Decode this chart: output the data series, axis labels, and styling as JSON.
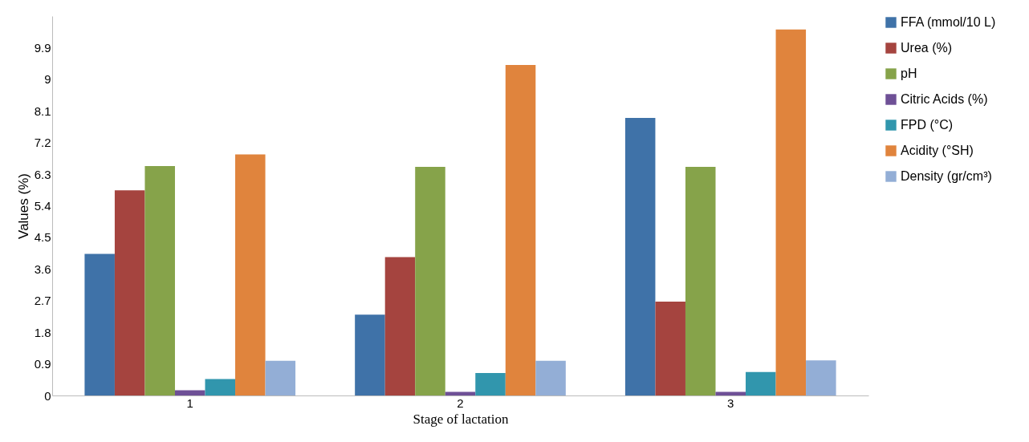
{
  "chart_data": {
    "type": "bar",
    "xlabel": "Stage of lactation",
    "ylabel": "Values (%)",
    "categories": [
      "1",
      "2",
      "3"
    ],
    "series": [
      {
        "name": "FFA (mmol/10 L)",
        "color": "#3f72a8",
        "values": [
          4.03,
          2.3,
          7.9
        ]
      },
      {
        "name": "Urea (%)",
        "color": "#a5443f",
        "values": [
          5.84,
          3.94,
          2.67
        ]
      },
      {
        "name": "pH",
        "color": "#86a34a",
        "values": [
          6.53,
          6.51,
          6.51
        ]
      },
      {
        "name": "Citric Acids (%)",
        "color": "#6e5096",
        "values": [
          0.15,
          0.1,
          0.1
        ]
      },
      {
        "name": "FPD (°C)",
        "color": "#3196ad",
        "values": [
          0.47,
          0.64,
          0.67
        ]
      },
      {
        "name": "Acidity (°SH)",
        "color": "#e0843d",
        "values": [
          6.86,
          9.41,
          10.42
        ]
      },
      {
        "name": "Density (gr/cm³)",
        "color": "#93aed6",
        "values": [
          0.99,
          0.99,
          1.0
        ]
      }
    ],
    "ylim": [
      0,
      10.8
    ],
    "yticks": [
      0,
      0.9,
      1.8,
      2.7,
      3.6,
      4.5,
      5.4,
      6.3,
      7.2,
      8.1,
      9,
      9.9
    ],
    "grid": false,
    "legend": "right"
  }
}
